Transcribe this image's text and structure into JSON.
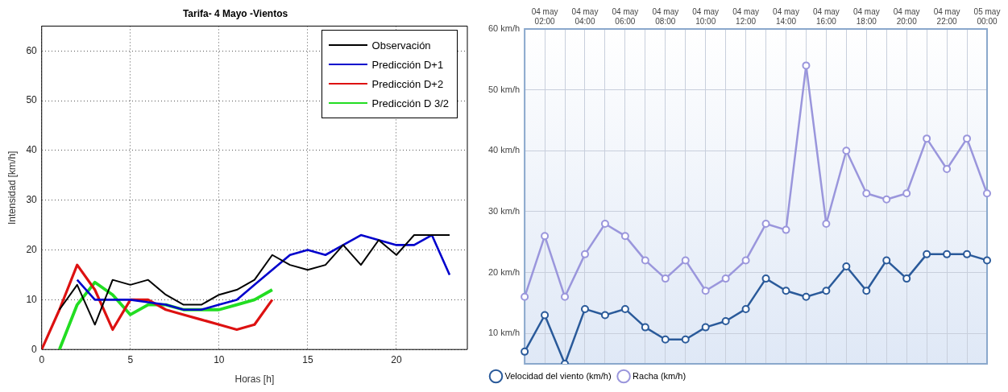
{
  "chart_data": [
    {
      "type": "line",
      "title": "Tarifa- 4 Mayo -Vientos",
      "xlabel": "Horas [h]",
      "ylabel": "Intensidad [km/h]",
      "xlim": [
        0,
        24
      ],
      "ylim": [
        0,
        65
      ],
      "xticks": [
        0,
        5,
        10,
        15,
        20
      ],
      "yticks": [
        0,
        10,
        20,
        30,
        40,
        50,
        60
      ],
      "grid": true,
      "legend": "top right",
      "marker": "none",
      "line_style": "solid",
      "series": [
        {
          "name": "Observación",
          "color": "#000000",
          "x": [
            1,
            2,
            3,
            4,
            5,
            6,
            7,
            8,
            9,
            10,
            11,
            12,
            13,
            14,
            15,
            16,
            17,
            18,
            19,
            20,
            21,
            22,
            23
          ],
          "values": [
            8,
            13,
            5,
            14,
            13,
            14,
            11,
            9,
            9,
            11,
            12,
            14,
            19,
            17,
            16,
            17,
            21,
            17,
            22,
            19,
            23,
            23,
            23
          ]
        },
        {
          "name": "Predicción D+1",
          "color": "#0000cc",
          "x": [
            2,
            3,
            4,
            5,
            6,
            7,
            8,
            9,
            10,
            11,
            12,
            13,
            14,
            15,
            16,
            17,
            18,
            19,
            20,
            21,
            22,
            23
          ],
          "values": [
            14,
            10,
            10,
            10,
            9.5,
            9,
            8,
            8,
            9,
            10,
            13,
            16,
            19,
            20,
            19,
            21,
            23,
            22,
            21,
            21,
            23,
            15
          ]
        },
        {
          "name": "Predicción D+2",
          "color": "#dd1111",
          "x": [
            0,
            1,
            2,
            3,
            4,
            5,
            6,
            7,
            8,
            9,
            10,
            11,
            12,
            13
          ],
          "values": [
            0,
            8,
            17,
            12,
            4,
            10,
            10,
            8,
            7,
            6,
            5,
            4,
            5,
            10
          ]
        },
        {
          "name": "Predicción D 3/2",
          "color": "#22dd22",
          "x": [
            1,
            2,
            3,
            4,
            5,
            6,
            7,
            8,
            9,
            10,
            11,
            12,
            13
          ],
          "values": [
            0,
            9,
            13.5,
            11,
            7,
            9,
            9,
            8,
            8,
            8,
            9,
            10,
            12
          ]
        }
      ]
    },
    {
      "type": "line",
      "categories": [
        null,
        "04 may 02:00",
        null,
        "04 may 04:00",
        null,
        "04 may 06:00",
        null,
        "04 may 08:00",
        null,
        "04 may 10:00",
        null,
        "04 may 12:00",
        null,
        "04 may 14:00",
        null,
        "04 may 16:00",
        null,
        "04 may 18:00",
        null,
        "04 may 20:00",
        null,
        "04 may 22:00",
        null,
        "05 may 00:00"
      ],
      "ylim": [
        5,
        60
      ],
      "yticks": [
        {
          "value": 10,
          "label": "10 km/h"
        },
        {
          "value": 20,
          "label": "20 km/h"
        },
        {
          "value": 30,
          "label": "30 km/h"
        },
        {
          "value": 40,
          "label": "40 km/h"
        },
        {
          "value": 50,
          "label": "50 km/h"
        },
        {
          "value": 60,
          "label": "60 km/h"
        }
      ],
      "grid": true,
      "legend": "bottom",
      "marker": "circle",
      "line_style": "solid",
      "series": [
        {
          "name": "Velocidad del viento (km/h)",
          "color": "#2a5a9a",
          "values": [
            7,
            13,
            5,
            14,
            13,
            14,
            11,
            9,
            9,
            11,
            12,
            14,
            19,
            17,
            16,
            17,
            21,
            17,
            22,
            19,
            23,
            23,
            23,
            22
          ]
        },
        {
          "name": "Racha (km/h)",
          "color": "#9a96dc",
          "values": [
            16,
            26,
            16,
            23,
            28,
            26,
            22,
            19,
            22,
            17,
            19,
            22,
            28,
            27,
            54,
            28,
            40,
            33,
            32,
            33,
            42,
            37,
            42,
            33
          ]
        }
      ]
    }
  ]
}
